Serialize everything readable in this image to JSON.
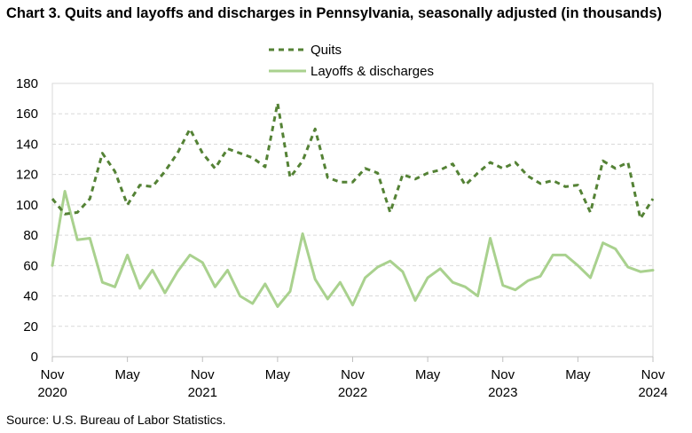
{
  "title": "Chart 3. Quits and layoffs and discharges in Pennsylvania, seasonally adjusted (in thousands)",
  "source": "Source: U.S. Bureau of Labor Statistics.",
  "chart_data": {
    "type": "line",
    "title": "Chart 3. Quits and layoffs and discharges in Pennsylvania, seasonally adjusted (in thousands)",
    "xlabel": "",
    "ylabel": "",
    "ylim": [
      0,
      180
    ],
    "yticks": [
      0,
      20,
      40,
      60,
      80,
      100,
      120,
      140,
      160,
      180
    ],
    "grid": true,
    "legend_position": "top-center",
    "x_tick_labels": [
      {
        "month": "Nov",
        "year": "2020",
        "index": 0
      },
      {
        "month": "May",
        "year": "",
        "index": 6
      },
      {
        "month": "Nov",
        "year": "2021",
        "index": 12
      },
      {
        "month": "May",
        "year": "",
        "index": 18
      },
      {
        "month": "Nov",
        "year": "2022",
        "index": 24
      },
      {
        "month": "May",
        "year": "",
        "index": 30
      },
      {
        "month": "Nov",
        "year": "2023",
        "index": 36
      },
      {
        "month": "May",
        "year": "",
        "index": 42
      },
      {
        "month": "Nov",
        "year": "2024",
        "index": 48
      }
    ],
    "x": [
      "Nov 2020",
      "Dec 2020",
      "Jan 2021",
      "Feb 2021",
      "Mar 2021",
      "Apr 2021",
      "May 2021",
      "Jun 2021",
      "Jul 2021",
      "Aug 2021",
      "Sep 2021",
      "Oct 2021",
      "Nov 2021",
      "Dec 2021",
      "Jan 2022",
      "Feb 2022",
      "Mar 2022",
      "Apr 2022",
      "May 2022",
      "Jun 2022",
      "Jul 2022",
      "Aug 2022",
      "Sep 2022",
      "Oct 2022",
      "Nov 2022",
      "Dec 2022",
      "Jan 2023",
      "Feb 2023",
      "Mar 2023",
      "Apr 2023",
      "May 2023",
      "Jun 2023",
      "Jul 2023",
      "Aug 2023",
      "Sep 2023",
      "Oct 2023",
      "Nov 2023",
      "Dec 2023",
      "Jan 2024",
      "Feb 2024",
      "Mar 2024",
      "Apr 2024",
      "May 2024",
      "Jun 2024",
      "Jul 2024",
      "Aug 2024",
      "Sep 2024",
      "Oct 2024",
      "Nov 2024"
    ],
    "series": [
      {
        "name": "Quits",
        "color": "#548235",
        "style": "dashed",
        "values": [
          104,
          94,
          95,
          104,
          134,
          122,
          100,
          113,
          112,
          122,
          134,
          150,
          134,
          124,
          137,
          134,
          131,
          125,
          167,
          118,
          129,
          150,
          118,
          115,
          115,
          124,
          121,
          95,
          120,
          117,
          121,
          123,
          127,
          113,
          121,
          128,
          124,
          128,
          119,
          114,
          116,
          112,
          113,
          95,
          129,
          124,
          128,
          91,
          104
        ]
      },
      {
        "name": "Layoffs & discharges",
        "color": "#a9d18e",
        "style": "solid",
        "values": [
          60,
          109,
          77,
          78,
          49,
          46,
          67,
          45,
          57,
          42,
          56,
          67,
          62,
          46,
          57,
          40,
          35,
          48,
          33,
          43,
          81,
          51,
          38,
          49,
          34,
          52,
          59,
          63,
          56,
          37,
          52,
          58,
          49,
          46,
          40,
          78,
          47,
          44,
          50,
          53,
          67,
          67,
          60,
          52,
          75,
          71,
          59,
          56,
          57
        ]
      }
    ]
  }
}
